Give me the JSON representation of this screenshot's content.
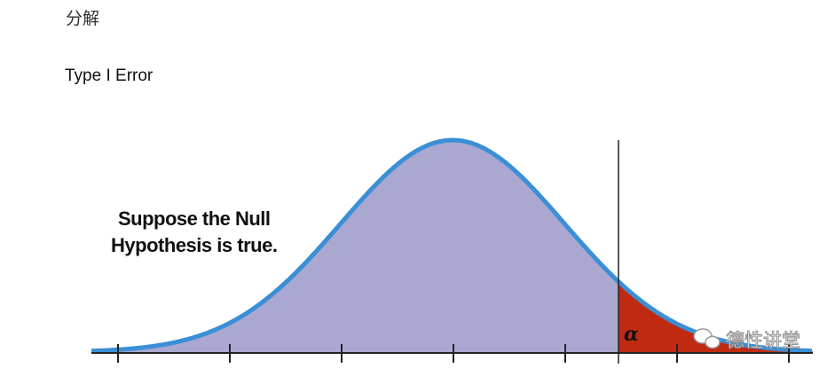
{
  "heading": "分解",
  "subheading": "Type I Error",
  "figure": {
    "caption_lines": [
      "Suppose the Null",
      "Hypothesis is true."
    ],
    "alpha_label": "α",
    "watermark": "德性讲堂"
  }
}
